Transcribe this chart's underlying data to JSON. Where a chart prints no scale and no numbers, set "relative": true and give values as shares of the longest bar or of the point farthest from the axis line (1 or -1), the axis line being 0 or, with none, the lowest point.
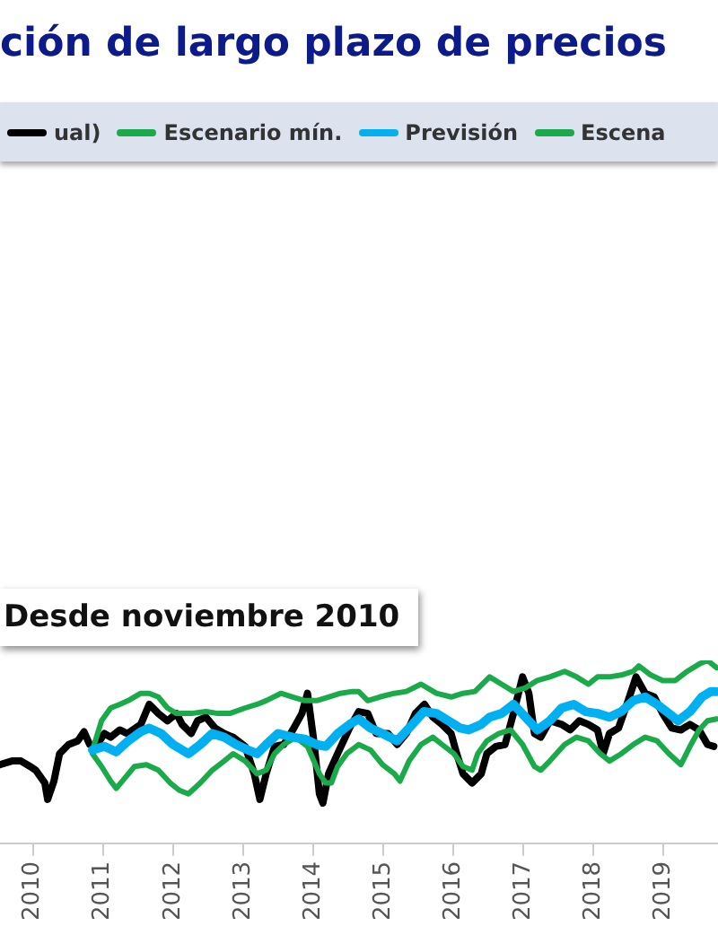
{
  "chart_data": {
    "type": "line",
    "title": "ción de largo plazo de precios",
    "relative": true,
    "legend": "top",
    "marker": "none",
    "line_style": "solid",
    "xlim": [
      2009.53,
      2019.78
    ],
    "xticks": [
      2010,
      2011,
      2012,
      2013,
      2014,
      2015,
      2016,
      2017,
      2018,
      2019
    ],
    "annotations": [
      "Desde noviembre 2010"
    ],
    "series": [
      {
        "name": "ual)",
        "color": "#000000",
        "x": [
          2009.53,
          2009.7,
          2009.83,
          2009.96,
          2010.04,
          2010.17,
          2010.21,
          2010.3,
          2010.38,
          2010.51,
          2010.64,
          2010.73,
          2010.81,
          2010.9,
          2011.02,
          2011.11,
          2011.24,
          2011.35,
          2011.54,
          2011.66,
          2011.79,
          2011.92,
          2012.05,
          2012.13,
          2012.26,
          2012.35,
          2012.47,
          2012.6,
          2012.73,
          2012.86,
          2013.03,
          2013.16,
          2013.24,
          2013.33,
          2013.45,
          2013.58,
          2013.71,
          2013.84,
          2013.92,
          2014.01,
          2014.09,
          2014.14,
          2014.22,
          2014.35,
          2014.52,
          2014.65,
          2014.78,
          2014.9,
          2015.07,
          2015.2,
          2015.33,
          2015.46,
          2015.59,
          2015.71,
          2015.84,
          2015.97,
          2016.05,
          2016.14,
          2016.27,
          2016.4,
          2016.48,
          2016.61,
          2016.74,
          2016.86,
          2016.99,
          2017.08,
          2017.16,
          2017.25,
          2017.38,
          2017.55,
          2017.67,
          2017.8,
          2017.93,
          2018.06,
          2018.14,
          2018.23,
          2018.36,
          2018.48,
          2018.61,
          2018.74,
          2018.87,
          2018.99,
          2019.12,
          2019.25,
          2019.38,
          2019.51,
          2019.63,
          2019.72
        ],
        "values": [
          0.43,
          0.45,
          0.45,
          0.42,
          0.4,
          0.33,
          0.24,
          0.34,
          0.49,
          0.54,
          0.56,
          0.61,
          0.54,
          0.53,
          0.6,
          0.58,
          0.62,
          0.6,
          0.65,
          0.76,
          0.71,
          0.67,
          0.71,
          0.65,
          0.6,
          0.67,
          0.69,
          0.63,
          0.6,
          0.58,
          0.53,
          0.38,
          0.24,
          0.38,
          0.53,
          0.54,
          0.62,
          0.71,
          0.82,
          0.56,
          0.27,
          0.22,
          0.38,
          0.49,
          0.63,
          0.72,
          0.71,
          0.6,
          0.6,
          0.54,
          0.6,
          0.71,
          0.76,
          0.69,
          0.65,
          0.6,
          0.49,
          0.38,
          0.33,
          0.38,
          0.49,
          0.53,
          0.54,
          0.71,
          0.91,
          0.82,
          0.6,
          0.58,
          0.67,
          0.65,
          0.62,
          0.67,
          0.65,
          0.62,
          0.49,
          0.6,
          0.63,
          0.76,
          0.91,
          0.82,
          0.8,
          0.71,
          0.63,
          0.62,
          0.65,
          0.62,
          0.54,
          0.53
        ]
      },
      {
        "name": "Escenario mín.",
        "color": "#1aaa4a",
        "x": [
          2010.85,
          2010.98,
          2011.11,
          2011.19,
          2011.32,
          2011.45,
          2011.62,
          2011.79,
          2011.96,
          2012.09,
          2012.22,
          2012.39,
          2012.56,
          2012.73,
          2012.86,
          2013.03,
          2013.2,
          2013.33,
          2013.45,
          2013.58,
          2013.75,
          2013.92,
          2014.09,
          2014.18,
          2014.26,
          2014.35,
          2014.48,
          2014.65,
          2014.82,
          2014.99,
          2015.16,
          2015.24,
          2015.37,
          2015.54,
          2015.71,
          2015.84,
          2016.01,
          2016.14,
          2016.27,
          2016.35,
          2016.48,
          2016.65,
          2016.82,
          2016.99,
          2017.16,
          2017.25,
          2017.38,
          2017.59,
          2017.76,
          2017.93,
          2018.1,
          2018.23,
          2018.4,
          2018.57,
          2018.74,
          2018.91,
          2019.08,
          2019.25,
          2019.38,
          2019.51,
          2019.63,
          2019.76
        ],
        "values": [
          0.49,
          0.42,
          0.34,
          0.3,
          0.36,
          0.42,
          0.43,
          0.4,
          0.33,
          0.29,
          0.27,
          0.33,
          0.4,
          0.45,
          0.49,
          0.45,
          0.38,
          0.4,
          0.49,
          0.54,
          0.58,
          0.53,
          0.38,
          0.33,
          0.33,
          0.42,
          0.49,
          0.54,
          0.51,
          0.43,
          0.38,
          0.34,
          0.45,
          0.54,
          0.58,
          0.54,
          0.49,
          0.42,
          0.4,
          0.49,
          0.56,
          0.6,
          0.62,
          0.54,
          0.42,
          0.4,
          0.45,
          0.54,
          0.58,
          0.56,
          0.49,
          0.45,
          0.49,
          0.54,
          0.58,
          0.56,
          0.49,
          0.43,
          0.53,
          0.62,
          0.67,
          0.68
        ]
      },
      {
        "name": "Previsión",
        "color": "#00b0f0",
        "x": [
          2010.85,
          2011.02,
          2011.19,
          2011.36,
          2011.54,
          2011.66,
          2011.83,
          2012.0,
          2012.22,
          2012.39,
          2012.56,
          2012.73,
          2012.9,
          2013.07,
          2013.2,
          2013.33,
          2013.5,
          2013.71,
          2013.88,
          2014.05,
          2014.18,
          2014.35,
          2014.52,
          2014.65,
          2014.82,
          2014.99,
          2015.2,
          2015.37,
          2015.58,
          2015.76,
          2015.93,
          2016.1,
          2016.22,
          2016.4,
          2016.52,
          2016.69,
          2016.86,
          2017.03,
          2017.2,
          2017.38,
          2017.55,
          2017.72,
          2017.89,
          2018.06,
          2018.23,
          2018.4,
          2018.57,
          2018.74,
          2018.91,
          2019.08,
          2019.21,
          2019.38,
          2019.55,
          2019.68,
          2019.76
        ],
        "values": [
          0.51,
          0.53,
          0.5,
          0.56,
          0.61,
          0.63,
          0.6,
          0.54,
          0.49,
          0.54,
          0.6,
          0.58,
          0.54,
          0.51,
          0.49,
          0.54,
          0.6,
          0.58,
          0.57,
          0.54,
          0.53,
          0.6,
          0.65,
          0.68,
          0.63,
          0.6,
          0.56,
          0.63,
          0.72,
          0.71,
          0.67,
          0.63,
          0.62,
          0.65,
          0.69,
          0.71,
          0.76,
          0.69,
          0.62,
          0.67,
          0.74,
          0.76,
          0.72,
          0.71,
          0.69,
          0.72,
          0.78,
          0.8,
          0.76,
          0.71,
          0.67,
          0.72,
          0.8,
          0.83,
          0.83
        ]
      },
      {
        "name": "Escena",
        "color": "#1aaa4a",
        "x": [
          2010.85,
          2010.98,
          2011.11,
          2011.24,
          2011.36,
          2011.54,
          2011.66,
          2011.79,
          2011.92,
          2012.05,
          2012.26,
          2012.47,
          2012.64,
          2012.81,
          2013.03,
          2013.2,
          2013.33,
          2013.54,
          2013.71,
          2013.88,
          2014.05,
          2014.22,
          2014.39,
          2014.56,
          2014.65,
          2014.78,
          2014.95,
          2015.16,
          2015.33,
          2015.54,
          2015.76,
          2015.97,
          2016.14,
          2016.31,
          2016.52,
          2016.69,
          2016.86,
          2017.03,
          2017.2,
          2017.38,
          2017.59,
          2017.76,
          2017.93,
          2018.06,
          2018.23,
          2018.4,
          2018.57,
          2018.65,
          2018.82,
          2018.99,
          2019.17,
          2019.34,
          2019.51,
          2019.63,
          2019.76
        ],
        "values": [
          0.51,
          0.67,
          0.74,
          0.76,
          0.78,
          0.82,
          0.82,
          0.8,
          0.74,
          0.71,
          0.71,
          0.72,
          0.71,
          0.71,
          0.74,
          0.76,
          0.78,
          0.82,
          0.8,
          0.78,
          0.78,
          0.8,
          0.82,
          0.83,
          0.83,
          0.78,
          0.8,
          0.82,
          0.83,
          0.87,
          0.82,
          0.8,
          0.82,
          0.83,
          0.91,
          0.87,
          0.83,
          0.85,
          0.89,
          0.91,
          0.94,
          0.91,
          0.87,
          0.91,
          0.91,
          0.92,
          0.94,
          0.97,
          0.92,
          0.89,
          0.89,
          0.94,
          0.98,
          1,
          0.96
        ]
      }
    ]
  }
}
